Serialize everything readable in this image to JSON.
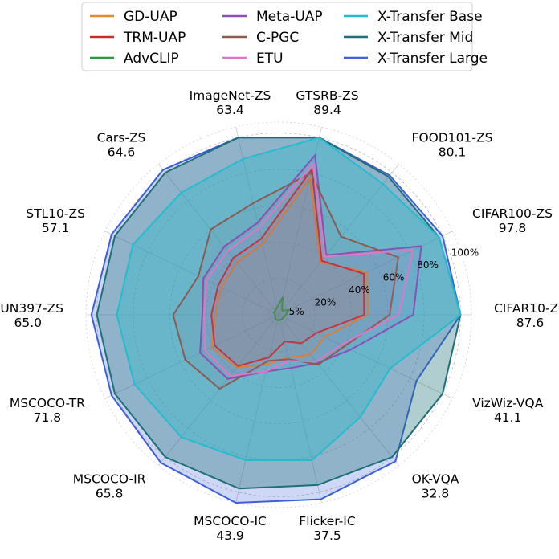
{
  "chart_data": {
    "type": "radar",
    "axes": [
      {
        "name": "CIFAR10-ZS",
        "value": "87.6"
      },
      {
        "name": "CIFAR100-ZS",
        "value": "97.8"
      },
      {
        "name": "FOOD101-ZS",
        "value": "80.1"
      },
      {
        "name": "GTSRB-ZS",
        "value": "89.4"
      },
      {
        "name": "ImageNet-ZS",
        "value": "63.4"
      },
      {
        "name": "Cars-ZS",
        "value": "64.6"
      },
      {
        "name": "STL10-ZS",
        "value": "57.1"
      },
      {
        "name": "SUN397-ZS",
        "value": "65.0"
      },
      {
        "name": "MSCOCO-TR",
        "value": "71.8"
      },
      {
        "name": "MSCOCO-IR",
        "value": "65.8"
      },
      {
        "name": "MSCOCO-IC",
        "value": "43.9"
      },
      {
        "name": "Flicker-IC",
        "value": "37.5"
      },
      {
        "name": "OK-VQA",
        "value": "32.8"
      },
      {
        "name": "VizWiz-VQA",
        "value": "41.1"
      }
    ],
    "radial_ticks": [
      "5%",
      "20%",
      "40%",
      "60%",
      "80%",
      "100%"
    ],
    "radial_tick_values": [
      5,
      20,
      40,
      60,
      80,
      100
    ],
    "rmax": 106,
    "legend_position": "top",
    "series": [
      {
        "name": "GD-UAP",
        "color": "#e08a2b",
        "fill": false,
        "values": [
          49,
          54,
          37,
          77,
          40,
          37,
          35,
          35,
          41,
          37,
          28,
          24,
          28,
          28
        ]
      },
      {
        "name": "TRM-UAP",
        "color": "#cc2a2a",
        "fill": false,
        "values": [
          47,
          52,
          38,
          82,
          43,
          40,
          37,
          37,
          39,
          36,
          24,
          15,
          20,
          23
        ]
      },
      {
        "name": "AdvCLIP",
        "color": "#2c9a3c",
        "fill": false,
        "values": [
          4,
          6,
          3,
          10,
          4,
          3,
          3,
          2,
          2,
          3,
          3,
          3,
          3,
          3
        ]
      },
      {
        "name": "Meta-UAP",
        "color": "#8a4fb8",
        "fill": false,
        "values": [
          74,
          87,
          42,
          90,
          52,
          48,
          46,
          42,
          48,
          45,
          32,
          30,
          34,
          44
        ]
      },
      {
        "name": "C-PGC",
        "color": "#8a5b50",
        "fill": false,
        "values": [
          61,
          73,
          55,
          80,
          63,
          60,
          49,
          58,
          57,
          52,
          26,
          25,
          35,
          40
        ]
      },
      {
        "name": "ETU",
        "color": "#e275c6",
        "fill": false,
        "values": [
          66,
          82,
          41,
          85,
          49,
          45,
          44,
          41,
          45,
          43,
          32,
          26,
          33,
          38
        ]
      },
      {
        "name": "X-Transfer Base",
        "color": "#23bccf",
        "fill": true,
        "values": [
          100,
          98,
          92,
          100,
          88,
          86,
          89,
          89,
          88,
          86,
          82,
          82,
          72,
          68
        ]
      },
      {
        "name": "X-Transfer Mid",
        "color": "#1d6f78",
        "fill": true,
        "values": [
          100,
          98,
          97,
          100,
          100,
          100,
          100,
          100,
          100,
          100,
          98,
          96,
          100,
          100
        ]
      },
      {
        "name": "X-Transfer Large",
        "color": "#3d5fd8",
        "fill": true,
        "values": [
          100,
          100,
          98,
          100,
          100,
          102,
          102,
          103,
          102,
          104,
          106,
          104,
          103,
          84
        ]
      }
    ]
  }
}
